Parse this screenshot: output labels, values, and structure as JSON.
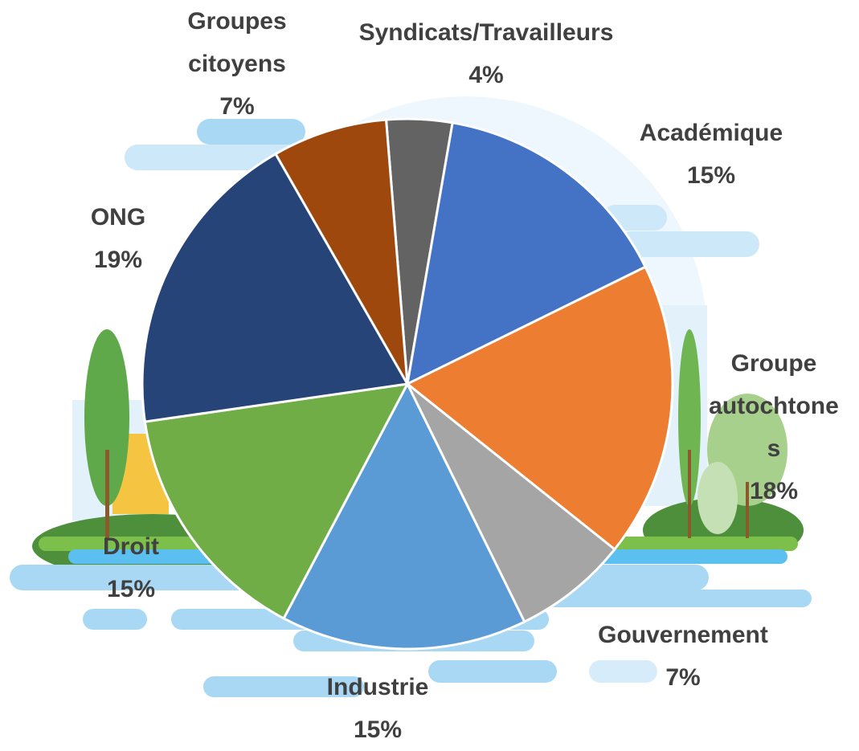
{
  "chart_data": {
    "type": "pie",
    "categories": [
      "Syndicats/Travailleurs",
      "Académique",
      "Groupe autochtones",
      "Gouvernement",
      "Industrie",
      "Droit",
      "ONG",
      "Groupes citoyens"
    ],
    "values": [
      4,
      15,
      18,
      7,
      15,
      15,
      19,
      7
    ],
    "value_labels": [
      "4%",
      "15%",
      "18%",
      "7%",
      "15%",
      "15%",
      "19%",
      "7%"
    ],
    "colors": [
      "#636363",
      "#4472c4",
      "#ed7d31",
      "#a5a5a5",
      "#5b9bd5",
      "#70ad47",
      "#264478",
      "#9e480e"
    ]
  }
}
